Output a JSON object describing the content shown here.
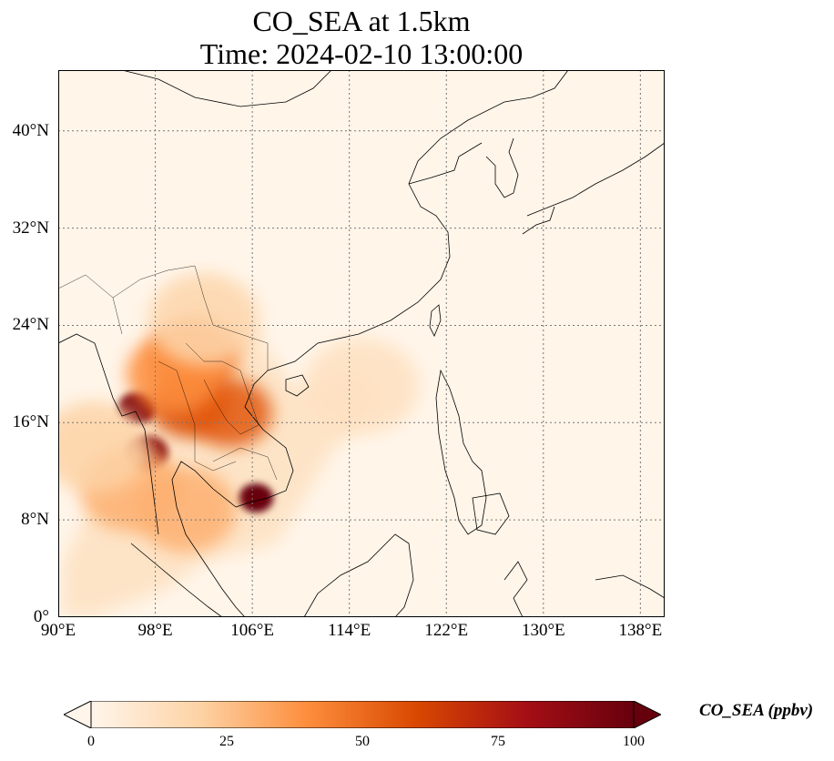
{
  "title": {
    "line1": "CO_SEA at 1.5km",
    "line2": "Time: 2024-02-10 13:00:00"
  },
  "map": {
    "lon_range": [
      90,
      140
    ],
    "lat_range": [
      0,
      45
    ],
    "x_ticks": [
      {
        "value": 90,
        "label": "90°E"
      },
      {
        "value": 98,
        "label": "98°E"
      },
      {
        "value": 106,
        "label": "106°E"
      },
      {
        "value": 114,
        "label": "114°E"
      },
      {
        "value": 122,
        "label": "122°E"
      },
      {
        "value": 130,
        "label": "130°E"
      },
      {
        "value": 138,
        "label": "138°E"
      }
    ],
    "y_ticks": [
      {
        "value": 0,
        "label": "0°"
      },
      {
        "value": 8,
        "label": "8°N"
      },
      {
        "value": 16,
        "label": "16°N"
      },
      {
        "value": 24,
        "label": "24°N"
      },
      {
        "value": 32,
        "label": "32°N"
      },
      {
        "value": 40,
        "label": "40°N"
      }
    ],
    "gridlines": "dotted",
    "background_color": "#fff5e9",
    "plumes": [
      {
        "lon": 96.5,
        "lat": 17.2,
        "value": 95
      },
      {
        "lon": 97.3,
        "lat": 13.5,
        "value": 90
      },
      {
        "lon": 106.3,
        "lat": 9.8,
        "value": 100
      },
      {
        "lon": 100.8,
        "lat": 17.5,
        "value": 60
      },
      {
        "lon": 101.2,
        "lat": 21.5,
        "value": 45
      },
      {
        "lon": 104.2,
        "lat": 16.8,
        "value": 55
      },
      {
        "lon": 99.5,
        "lat": 20.0,
        "value": 40
      },
      {
        "lon": 96.0,
        "lat": 10.5,
        "value": 30
      },
      {
        "lon": 100.5,
        "lat": 8.8,
        "value": 30
      },
      {
        "lon": 102.0,
        "lat": 24.5,
        "value": 18
      },
      {
        "lon": 115.0,
        "lat": 19.0,
        "value": 12
      },
      {
        "lon": 93.0,
        "lat": 14.0,
        "value": 20
      }
    ]
  },
  "colorbar": {
    "label": "CO_SEA (ppbv)",
    "min": 0,
    "max": 100,
    "ticks": [
      {
        "value": 0,
        "label": "0"
      },
      {
        "value": 25,
        "label": "25"
      },
      {
        "value": 50,
        "label": "50"
      },
      {
        "value": 75,
        "label": "75"
      },
      {
        "value": 100,
        "label": "100"
      }
    ],
    "colormap": [
      "#fff5eb",
      "#fdd3a5",
      "#fd8d3c",
      "#d94801",
      "#a50f15",
      "#67000d"
    ],
    "extend": "both"
  }
}
